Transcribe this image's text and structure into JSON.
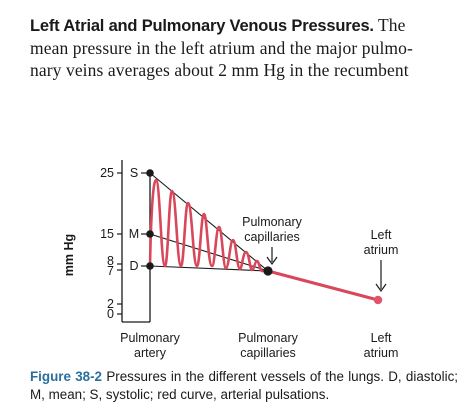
{
  "paragraph": {
    "heading": "Left Atrial and Pulmonary Venous Pressures.",
    "line1_rest": "The",
    "line2": "mean pressure in the left atrium and the major pulmo-",
    "line3": "nary veins averages about 2 mm Hg in the recumbent"
  },
  "figure": {
    "y_axis_label": "mm Hg",
    "y_ticks": [
      "25",
      "15",
      "8",
      "7",
      "2",
      "0"
    ],
    "point_labels": {
      "systolic": "S",
      "mean": "M",
      "diastolic": "D"
    },
    "annotation_capillaries": [
      "Pulmonary",
      "capillaries"
    ],
    "annotation_atrium": [
      "Left",
      "atrium"
    ],
    "x_categories": [
      [
        "Pulmonary",
        "artery"
      ],
      [
        "Pulmonary",
        "capillaries"
      ],
      [
        "Left",
        "atrium"
      ]
    ],
    "colors": {
      "curve": "#d9485a",
      "line": "#1a1a1a",
      "caption_label": "#2a6f9e"
    },
    "values": {
      "artery_systolic": 25,
      "artery_mean": 15,
      "artery_diastolic": 8,
      "capillary_mean": 7,
      "left_atrium_mean": 2
    }
  },
  "caption": {
    "label": "Figure 38-2",
    "text": "Pressures in the different vessels of the lungs. D, diastolic; M, mean; S, systolic; red curve, arterial pulsations."
  }
}
